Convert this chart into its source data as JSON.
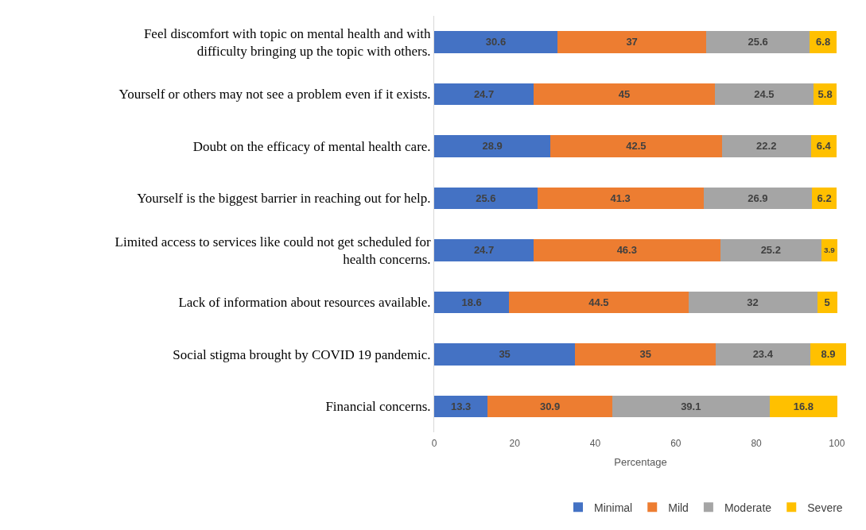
{
  "chart_data": {
    "type": "bar",
    "orientation": "horizontal",
    "stacked": true,
    "data_labels": true,
    "xlabel": "Percentage",
    "categories": [
      "Feel discomfort with topic on mental health and with difficulty bringing up the topic with others.",
      "Yourself or others may not see a problem even if it exists.",
      "Doubt on the efficacy of mental health care.",
      "Yourself is the biggest barrier in reaching out for help.",
      "Limited access to services like could not get scheduled for health concerns.",
      "Lack of information about resources available.",
      "Social stigma brought by COVID 19 pandemic.",
      "Financial concerns."
    ],
    "series": [
      {
        "name": "Minimal",
        "color": "#4472c4",
        "values": [
          30.6,
          24.7,
          28.9,
          25.6,
          24.7,
          18.6,
          35,
          13.3
        ]
      },
      {
        "name": "Mild",
        "color": "#ed7d31",
        "values": [
          37,
          45,
          42.5,
          41.3,
          46.3,
          44.5,
          35,
          30.9
        ]
      },
      {
        "name": "Moderate",
        "color": "#a5a5a5",
        "values": [
          25.6,
          24.5,
          22.2,
          26.9,
          25.2,
          32,
          23.4,
          39.1
        ]
      },
      {
        "name": "Severe",
        "color": "#ffc000",
        "values": [
          6.8,
          5.8,
          6.4,
          6.2,
          3.9,
          5,
          8.9,
          16.8
        ]
      }
    ],
    "xlim": [
      0,
      102.5
    ],
    "xticks": [
      0,
      20,
      40,
      60,
      80,
      100
    ],
    "grid": false,
    "legend": "bottom"
  }
}
